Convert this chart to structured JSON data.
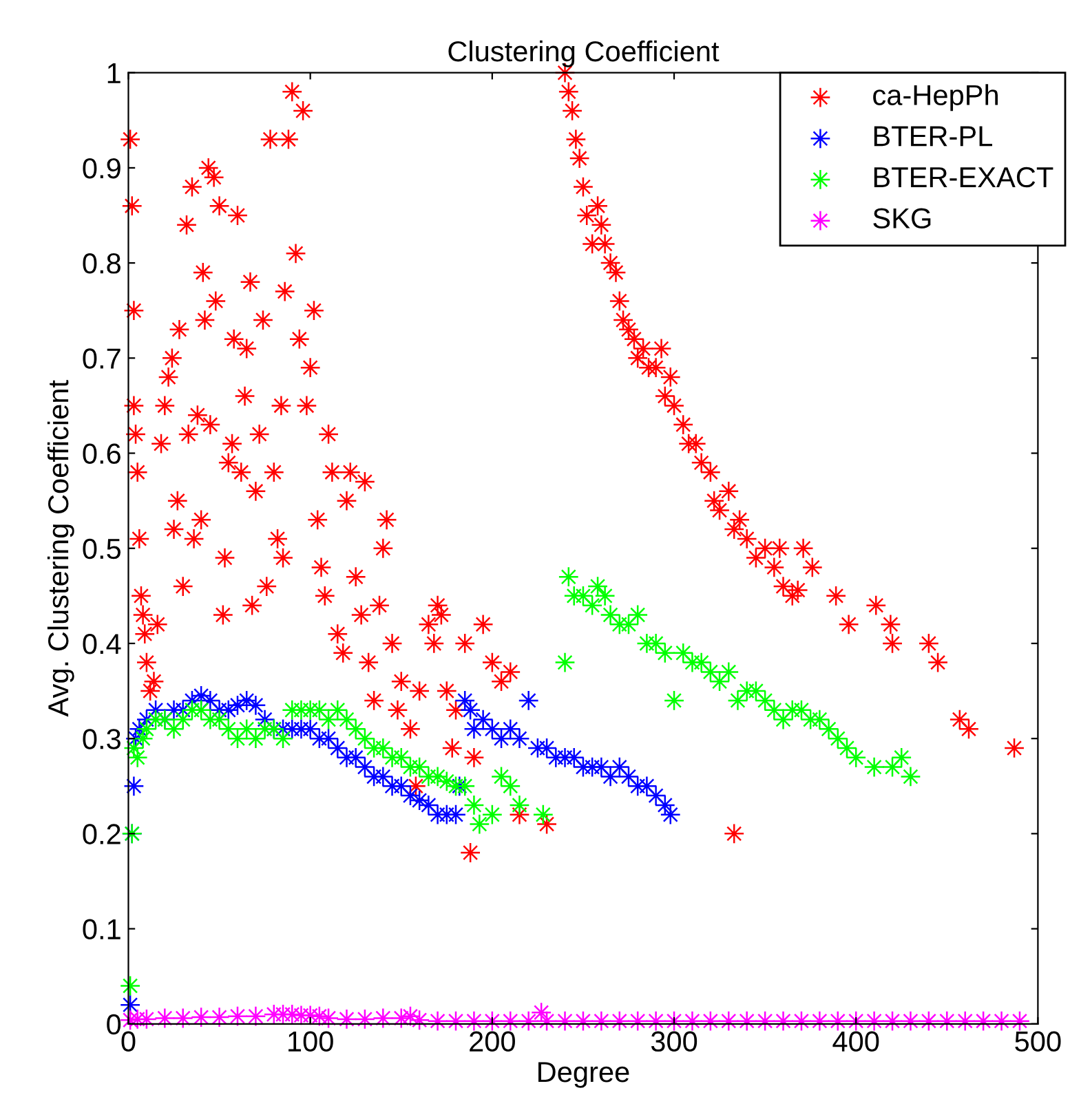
{
  "chart_data": {
    "type": "scatter",
    "title": "Clustering Coefficient",
    "xlabel": "Degree",
    "ylabel": "Avg. Clustering Coefficient",
    "xlim": [
      0,
      500
    ],
    "xticks": [
      0,
      100,
      200,
      300,
      400,
      500
    ],
    "ylim": [
      0,
      1
    ],
    "yticks": [
      0,
      0.1,
      0.2,
      0.3,
      0.4,
      0.5,
      0.6,
      0.7,
      0.8,
      0.9,
      1
    ],
    "grid": false,
    "legend": "top right",
    "marker": "cross",
    "series": [
      {
        "name": "ca-HepPh",
        "color": "#ff0000",
        "x": [
          1,
          2,
          3,
          3,
          4,
          5,
          6,
          7,
          8,
          9,
          10,
          12,
          14,
          16,
          18,
          20,
          22,
          24,
          25,
          27,
          28,
          30,
          32,
          33,
          35,
          36,
          38,
          40,
          41,
          42,
          44,
          45,
          47,
          48,
          50,
          52,
          53,
          55,
          57,
          58,
          60,
          62,
          64,
          65,
          67,
          68,
          70,
          72,
          74,
          76,
          78,
          80,
          82,
          84,
          85,
          86,
          88,
          90,
          92,
          94,
          96,
          98,
          100,
          102,
          104,
          106,
          108,
          110,
          112,
          115,
          118,
          120,
          122,
          125,
          128,
          130,
          132,
          135,
          138,
          140,
          142,
          145,
          148,
          150,
          155,
          158,
          160,
          165,
          168,
          170,
          172,
          175,
          178,
          180,
          185,
          188,
          190,
          195,
          200,
          205,
          210,
          215,
          230,
          240,
          242,
          244,
          246,
          248,
          250,
          252,
          255,
          258,
          260,
          262,
          265,
          268,
          270,
          272,
          275,
          278,
          280,
          283,
          286,
          290,
          293,
          295,
          298,
          300,
          305,
          308,
          312,
          315,
          320,
          322,
          325,
          330,
          333,
          336,
          340,
          345,
          350,
          355,
          358,
          360,
          365,
          368,
          371,
          376,
          389,
          396,
          411,
          419,
          420,
          333,
          440,
          445,
          457,
          462,
          487
        ],
        "values": [
          0.93,
          0.86,
          0.75,
          0.65,
          0.62,
          0.58,
          0.51,
          0.45,
          0.43,
          0.41,
          0.38,
          0.35,
          0.36,
          0.42,
          0.61,
          0.65,
          0.68,
          0.7,
          0.52,
          0.55,
          0.73,
          0.46,
          0.84,
          0.62,
          0.88,
          0.51,
          0.64,
          0.53,
          0.79,
          0.74,
          0.9,
          0.63,
          0.89,
          0.76,
          0.86,
          0.43,
          0.49,
          0.59,
          0.61,
          0.72,
          0.85,
          0.58,
          0.66,
          0.71,
          0.78,
          0.44,
          0.56,
          0.62,
          0.74,
          0.46,
          0.93,
          0.58,
          0.51,
          0.65,
          0.49,
          0.77,
          0.93,
          0.98,
          0.81,
          0.72,
          0.96,
          0.65,
          0.69,
          0.75,
          0.53,
          0.48,
          0.45,
          0.62,
          0.58,
          0.41,
          0.39,
          0.55,
          0.58,
          0.47,
          0.43,
          0.57,
          0.38,
          0.34,
          0.44,
          0.5,
          0.53,
          0.4,
          0.33,
          0.36,
          0.31,
          0.25,
          0.35,
          0.42,
          0.4,
          0.44,
          0.43,
          0.35,
          0.29,
          0.33,
          0.4,
          0.18,
          0.28,
          0.42,
          0.38,
          0.36,
          0.37,
          0.22,
          0.21,
          1.0,
          0.98,
          0.96,
          0.93,
          0.91,
          0.88,
          0.85,
          0.82,
          0.86,
          0.84,
          0.82,
          0.8,
          0.79,
          0.76,
          0.74,
          0.73,
          0.72,
          0.7,
          0.71,
          0.69,
          0.69,
          0.71,
          0.66,
          0.68,
          0.65,
          0.63,
          0.61,
          0.61,
          0.59,
          0.58,
          0.55,
          0.54,
          0.56,
          0.52,
          0.53,
          0.51,
          0.49,
          0.5,
          0.48,
          0.5,
          0.46,
          0.45,
          0.456,
          0.5,
          0.48,
          0.45,
          0.42,
          0.44,
          0.42,
          0.4,
          0.2,
          0.4,
          0.38,
          0.32,
          0.31,
          0.29
        ]
      },
      {
        "name": "BTER-PL",
        "color": "#0000ff",
        "x": [
          1,
          2,
          3,
          4,
          6,
          10,
          15,
          20,
          25,
          30,
          35,
          40,
          45,
          50,
          55,
          60,
          65,
          70,
          75,
          80,
          85,
          90,
          95,
          100,
          105,
          110,
          115,
          120,
          125,
          130,
          135,
          140,
          145,
          150,
          155,
          160,
          165,
          170,
          175,
          180,
          182,
          185,
          188,
          190,
          195,
          200,
          205,
          210,
          215,
          220,
          225,
          230,
          235,
          240,
          245,
          250,
          255,
          260,
          265,
          270,
          275,
          280,
          285,
          290,
          295,
          298
        ],
        "values": [
          0.02,
          0.2,
          0.25,
          0.3,
          0.31,
          0.32,
          0.33,
          0.32,
          0.33,
          0.33,
          0.34,
          0.345,
          0.34,
          0.33,
          0.33,
          0.335,
          0.34,
          0.335,
          0.32,
          0.31,
          0.31,
          0.31,
          0.31,
          0.31,
          0.3,
          0.3,
          0.29,
          0.28,
          0.28,
          0.27,
          0.26,
          0.26,
          0.25,
          0.25,
          0.24,
          0.235,
          0.23,
          0.22,
          0.22,
          0.22,
          0.25,
          0.34,
          0.33,
          0.31,
          0.32,
          0.31,
          0.3,
          0.31,
          0.3,
          0.34,
          0.29,
          0.29,
          0.28,
          0.28,
          0.28,
          0.27,
          0.27,
          0.27,
          0.26,
          0.27,
          0.26,
          0.25,
          0.25,
          0.24,
          0.23,
          0.22
        ]
      },
      {
        "name": "BTER-EXACT",
        "color": "#00ff00",
        "x": [
          1,
          2,
          3,
          5,
          8,
          10,
          15,
          20,
          25,
          30,
          35,
          40,
          45,
          50,
          55,
          60,
          65,
          70,
          75,
          80,
          85,
          90,
          95,
          100,
          105,
          110,
          115,
          120,
          125,
          130,
          135,
          140,
          145,
          150,
          155,
          160,
          165,
          170,
          175,
          180,
          185,
          190,
          193,
          200,
          205,
          210,
          215,
          228,
          240,
          242,
          245,
          250,
          255,
          258,
          262,
          265,
          270,
          275,
          280,
          285,
          290,
          295,
          300,
          305,
          310,
          315,
          320,
          325,
          330,
          335,
          340,
          345,
          350,
          355,
          360,
          365,
          370,
          375,
          380,
          385,
          390,
          395,
          400,
          410,
          420,
          425,
          430
        ],
        "values": [
          0.04,
          0.2,
          0.29,
          0.28,
          0.3,
          0.31,
          0.32,
          0.32,
          0.31,
          0.32,
          0.33,
          0.33,
          0.32,
          0.32,
          0.31,
          0.3,
          0.31,
          0.3,
          0.31,
          0.31,
          0.3,
          0.33,
          0.33,
          0.33,
          0.33,
          0.32,
          0.33,
          0.32,
          0.31,
          0.3,
          0.29,
          0.29,
          0.28,
          0.28,
          0.27,
          0.27,
          0.26,
          0.26,
          0.255,
          0.25,
          0.25,
          0.23,
          0.21,
          0.22,
          0.26,
          0.25,
          0.23,
          0.22,
          0.38,
          0.47,
          0.45,
          0.45,
          0.44,
          0.46,
          0.45,
          0.43,
          0.42,
          0.42,
          0.43,
          0.4,
          0.4,
          0.39,
          0.34,
          0.39,
          0.38,
          0.38,
          0.37,
          0.36,
          0.37,
          0.34,
          0.35,
          0.35,
          0.34,
          0.33,
          0.32,
          0.33,
          0.33,
          0.32,
          0.32,
          0.31,
          0.3,
          0.29,
          0.28,
          0.27,
          0.27,
          0.28,
          0.26
        ]
      },
      {
        "name": "SKG",
        "color": "#ff00ff",
        "x": [
          1,
          5,
          10,
          20,
          30,
          40,
          50,
          60,
          70,
          80,
          85,
          90,
          95,
          100,
          105,
          110,
          120,
          130,
          140,
          150,
          155,
          160,
          170,
          180,
          190,
          200,
          210,
          220,
          227,
          230,
          240,
          250,
          260,
          270,
          280,
          290,
          300,
          310,
          320,
          330,
          340,
          350,
          360,
          370,
          380,
          390,
          400,
          410,
          420,
          430,
          440,
          450,
          460,
          470,
          480,
          490
        ],
        "values": [
          0.004,
          0.005,
          0.005,
          0.006,
          0.006,
          0.007,
          0.007,
          0.008,
          0.008,
          0.01,
          0.01,
          0.01,
          0.009,
          0.009,
          0.008,
          0.006,
          0.005,
          0.005,
          0.006,
          0.006,
          0.008,
          0.004,
          0.003,
          0.003,
          0.003,
          0.003,
          0.003,
          0.003,
          0.012,
          0.003,
          0.003,
          0.003,
          0.003,
          0.003,
          0.003,
          0.003,
          0.003,
          0.003,
          0.003,
          0.003,
          0.003,
          0.003,
          0.003,
          0.003,
          0.003,
          0.003,
          0.003,
          0.003,
          0.003,
          0.003,
          0.003,
          0.003,
          0.003,
          0.003,
          0.003,
          0.003
        ]
      }
    ]
  }
}
